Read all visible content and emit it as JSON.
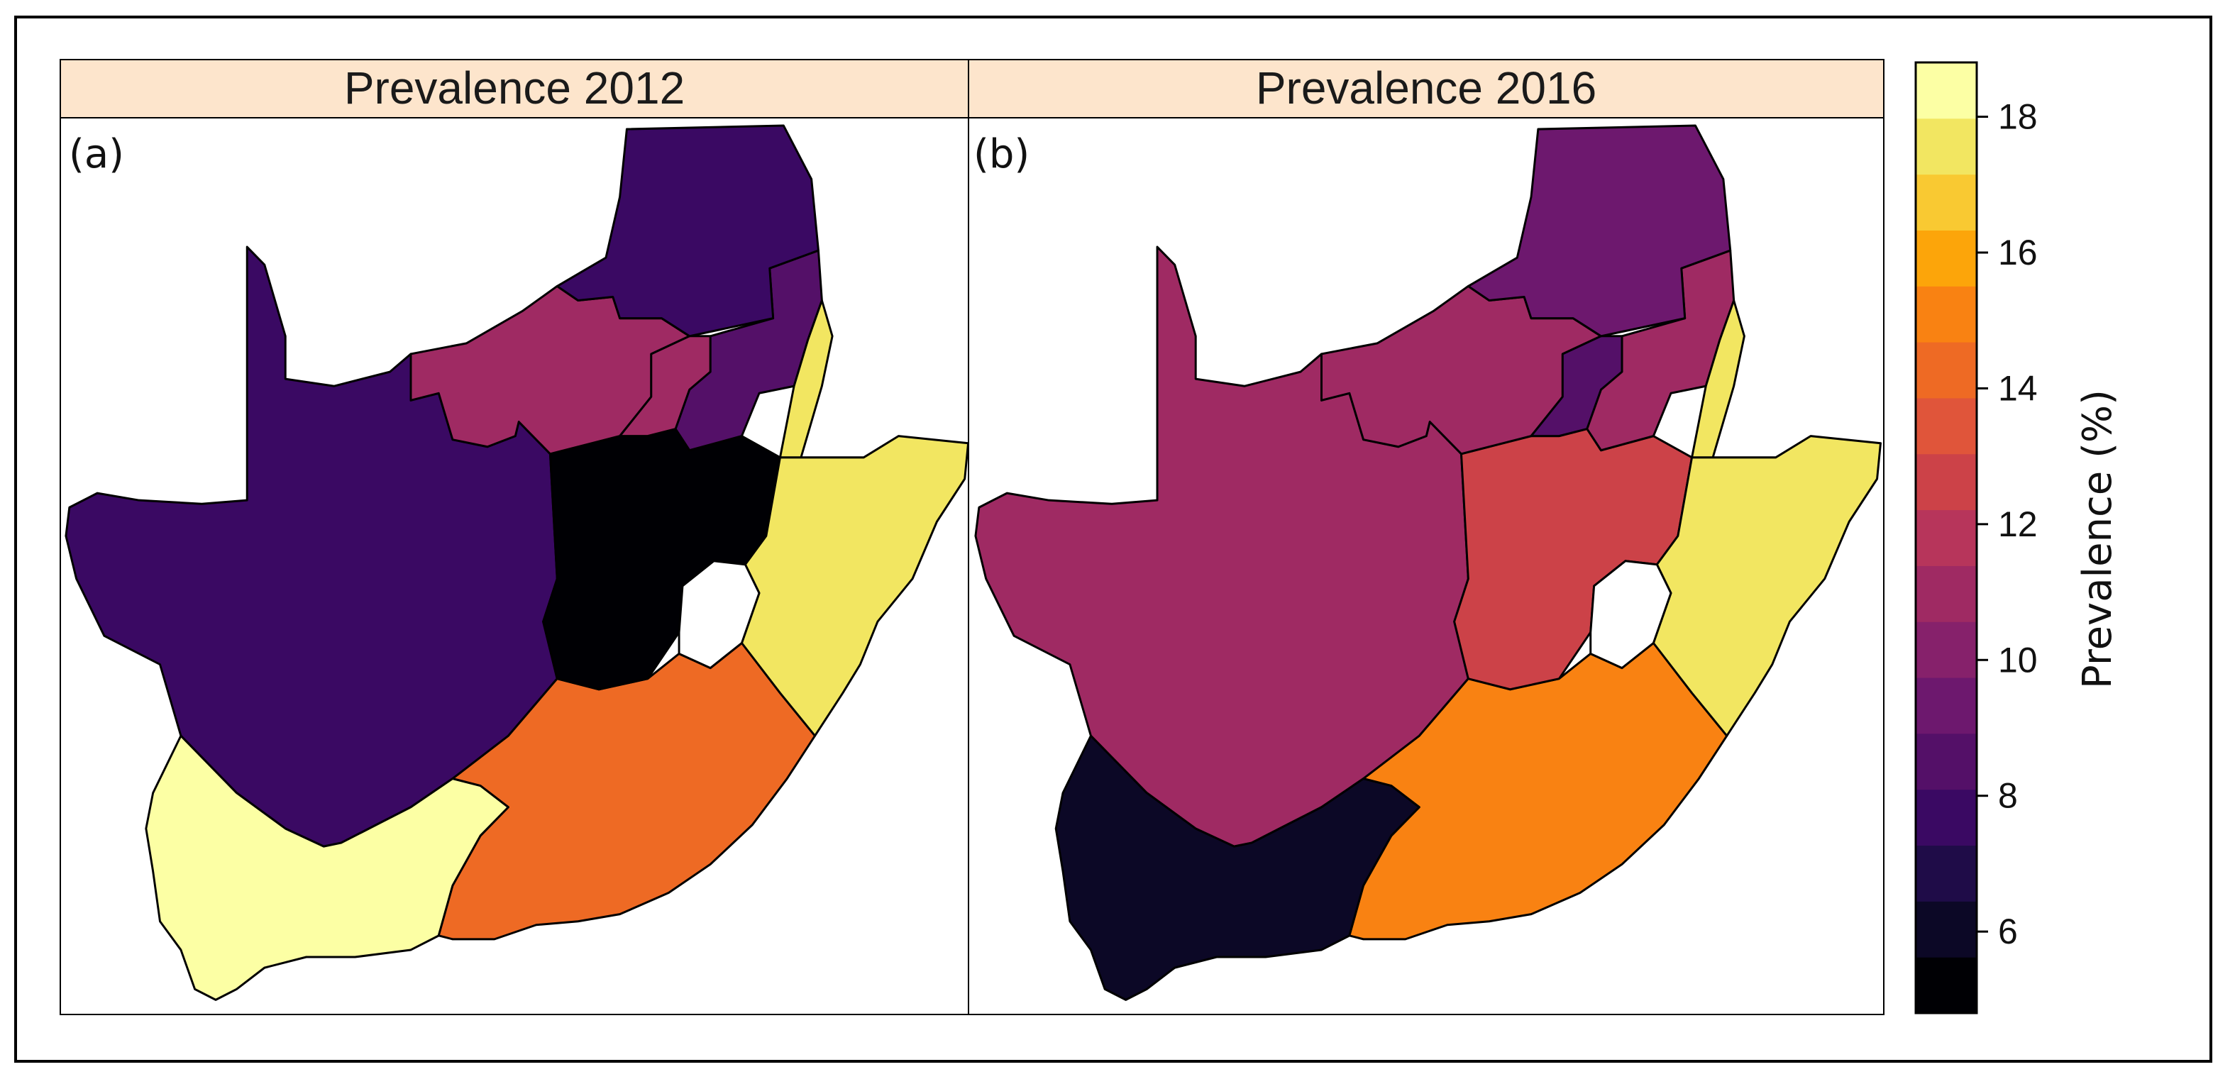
{
  "chart_data": {
    "type": "choropleth",
    "panels": [
      {
        "title": "Prevalence 2012",
        "label": "(a)",
        "regions": [
          {
            "name": "Limpopo",
            "value": 7.3
          },
          {
            "name": "Mpumalanga",
            "value": 8.9
          },
          {
            "name": "North West",
            "value": 11.0
          },
          {
            "name": "Gauteng",
            "value": 11.0
          },
          {
            "name": "Free State",
            "value": 5.2
          },
          {
            "name": "KwaZulu-Natal",
            "value": 17.5
          },
          {
            "name": "Northern Cape",
            "value": 7.3
          },
          {
            "name": "Western Cape",
            "value": 18.4
          },
          {
            "name": "Eastern Cape",
            "value": 14.4
          }
        ]
      },
      {
        "title": "Prevalence 2016",
        "label": "(b)",
        "regions": [
          {
            "name": "Limpopo",
            "value": 9.3
          },
          {
            "name": "Mpumalanga",
            "value": 11.3
          },
          {
            "name": "North West",
            "value": 11.3
          },
          {
            "name": "Gauteng",
            "value": 8.3
          },
          {
            "name": "Free State",
            "value": 12.4
          },
          {
            "name": "KwaZulu-Natal",
            "value": 17.6
          },
          {
            "name": "Northern Cape",
            "value": 10.6
          },
          {
            "name": "Western Cape",
            "value": 6.2
          },
          {
            "name": "Eastern Cape",
            "value": 15.4
          }
        ]
      }
    ],
    "colorbar": {
      "title": "Prevalence (%)",
      "range": [
        4.8,
        18.8
      ],
      "ticks": [
        "6",
        "8",
        "10",
        "12",
        "14",
        "16",
        "18"
      ],
      "tick_values": [
        6,
        8,
        10,
        12,
        14,
        16,
        18
      ],
      "colors": [
        "#000004",
        "#0c0826",
        "#1f0c48",
        "#3a0963",
        "#541068",
        "#6d186e",
        "#86216b",
        "#9f2a63",
        "#b7355b",
        "#cc4248",
        "#e0553a",
        "#ee6a24",
        "#f98212",
        "#fca50a",
        "#f9c932",
        "#f2e661",
        "#fcffa4"
      ]
    },
    "colors": {
      "strip_fill": "#fde5cc",
      "lesotho_fill": "#ffffff",
      "border": "#000000"
    }
  }
}
